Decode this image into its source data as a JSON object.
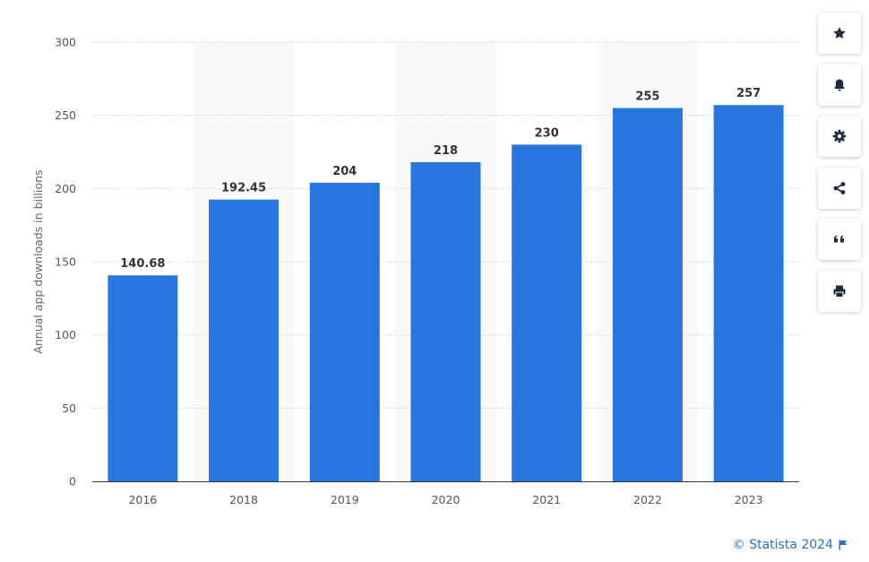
{
  "chart_data": {
    "type": "bar",
    "categories": [
      "2016",
      "2018",
      "2019",
      "2020",
      "2021",
      "2022",
      "2023"
    ],
    "values": [
      140.68,
      192.45,
      204,
      218,
      230,
      255,
      257
    ],
    "data_labels": [
      "140.68",
      "192.45",
      "204",
      "218",
      "230",
      "255",
      "257"
    ],
    "title": "",
    "xlabel": "",
    "ylabel": "Annual app downloads in billions",
    "ylim": [
      0,
      300
    ],
    "yticks": [
      0,
      50,
      100,
      150,
      200,
      250,
      300
    ],
    "grid": true,
    "bar_color": "#2876dd",
    "highlight_band_color": "#f9f9f9",
    "grid_color": "#cccccc"
  },
  "toolbar": [
    {
      "name": "star-icon"
    },
    {
      "name": "bell-icon"
    },
    {
      "name": "gear-icon"
    },
    {
      "name": "share-icon"
    },
    {
      "name": "quote-icon"
    },
    {
      "name": "print-icon"
    }
  ],
  "credit": {
    "text": "© Statista 2024",
    "icon": "flag-icon",
    "color": "#2c6fcd"
  }
}
